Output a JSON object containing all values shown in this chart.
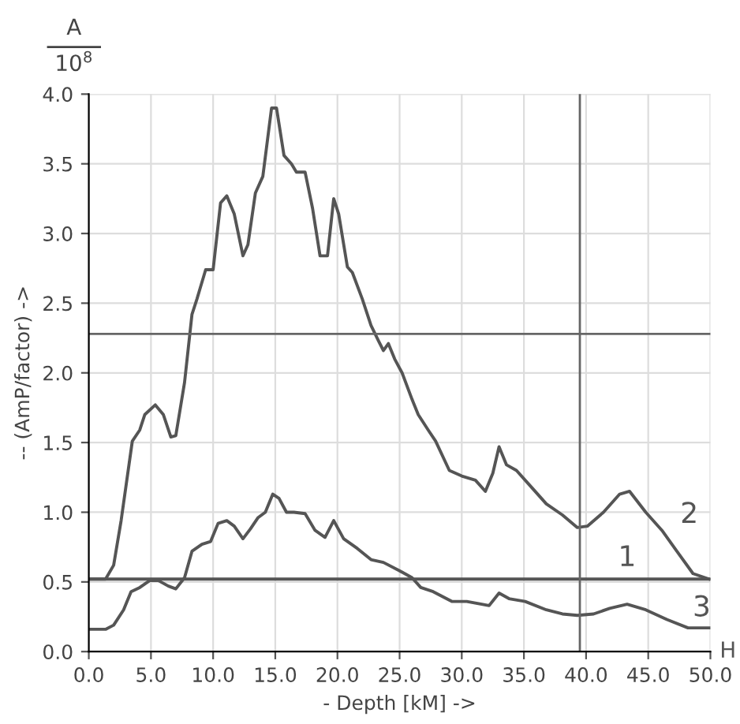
{
  "chart_data": {
    "type": "line",
    "xlabel": "- Depth [kM] ->",
    "ylabel": "-- (AmP/factor) ->",
    "xlim": [
      0,
      50
    ],
    "ylim": [
      0,
      4
    ],
    "xticks": [
      {
        "value": 0,
        "label": "0.0"
      },
      {
        "value": 5,
        "label": "5.0"
      },
      {
        "value": 10,
        "label": "10.0"
      },
      {
        "value": 15,
        "label": "15.0"
      },
      {
        "value": 20,
        "label": "20.0"
      },
      {
        "value": 25,
        "label": "25.0"
      },
      {
        "value": 30,
        "label": "30.0"
      },
      {
        "value": 35,
        "label": "35.0"
      },
      {
        "value": 40,
        "label": "40.0"
      },
      {
        "value": 45,
        "label": "45.0"
      },
      {
        "value": 50,
        "label": "50.0"
      }
    ],
    "yticks": [
      {
        "value": 0,
        "label": "0.0"
      },
      {
        "value": 0.5,
        "label": "0.5"
      },
      {
        "value": 1,
        "label": "1.0"
      },
      {
        "value": 1.5,
        "label": "1.5"
      },
      {
        "value": 2,
        "label": "2.0"
      },
      {
        "value": 2.5,
        "label": "2.5"
      },
      {
        "value": 3,
        "label": "3.0"
      },
      {
        "value": 3.5,
        "label": "3.5"
      },
      {
        "value": 4,
        "label": "4.0"
      }
    ],
    "grid": true,
    "line_style": "solid",
    "marker": "none",
    "series": [
      {
        "name": "1",
        "color": "#555555",
        "x": [
          0,
          50
        ],
        "values": [
          0.52,
          0.52
        ]
      },
      {
        "name": "2",
        "color": "#555555",
        "x": [
          0,
          1.35,
          2.0,
          2.6,
          3.5,
          4.1,
          4.5,
          5.35,
          6.0,
          6.6,
          7.0,
          7.7,
          8.3,
          8.7,
          9.4,
          10.0,
          10.6,
          11.1,
          11.7,
          12.4,
          12.8,
          13.4,
          14.0,
          14.7,
          15.1,
          15.7,
          16.3,
          16.7,
          17.4,
          18.0,
          18.6,
          19.2,
          19.7,
          20.1,
          20.8,
          21.2,
          22.0,
          22.7,
          23.3,
          23.7,
          24.1,
          24.6,
          25.2,
          26.0,
          26.5,
          27.3,
          27.9,
          29.0,
          30.0,
          31.1,
          31.9,
          32.5,
          33.0,
          33.6,
          34.4,
          35.5,
          36.8,
          38.1,
          39.3,
          40.1,
          41.4,
          42.7,
          43.5,
          44.8,
          46.1,
          47.3,
          48.6,
          49.9
        ],
        "values": [
          0.52,
          0.52,
          0.62,
          0.94,
          1.51,
          1.59,
          1.7,
          1.77,
          1.7,
          1.54,
          1.55,
          1.93,
          2.42,
          2.53,
          2.74,
          2.74,
          3.22,
          3.27,
          3.14,
          2.84,
          2.92,
          3.29,
          3.41,
          3.9,
          3.9,
          3.56,
          3.5,
          3.44,
          3.44,
          3.18,
          2.84,
          2.84,
          3.25,
          3.14,
          2.76,
          2.72,
          2.53,
          2.34,
          2.23,
          2.16,
          2.21,
          2.1,
          2.0,
          1.81,
          1.7,
          1.59,
          1.51,
          1.3,
          1.26,
          1.23,
          1.15,
          1.28,
          1.47,
          1.34,
          1.3,
          1.19,
          1.06,
          0.98,
          0.89,
          0.9,
          1.0,
          1.13,
          1.15,
          1.0,
          0.87,
          0.72,
          0.56,
          0.52
        ]
      },
      {
        "name": "3",
        "color": "#555555",
        "x": [
          0,
          1.35,
          2.0,
          2.8,
          3.4,
          4.1,
          4.9,
          5.6,
          6.4,
          7.0,
          7.7,
          8.3,
          9.1,
          9.8,
          10.4,
          11.1,
          11.7,
          12.4,
          13.0,
          13.6,
          14.2,
          14.8,
          15.3,
          15.9,
          16.5,
          17.4,
          18.2,
          19.0,
          19.7,
          20.5,
          21.6,
          22.7,
          23.7,
          25.0,
          26.0,
          26.7,
          27.7,
          29.2,
          30.4,
          32.2,
          33.0,
          33.8,
          35.1,
          36.8,
          38.1,
          39.3,
          40.6,
          41.9,
          43.3,
          44.8,
          46.5,
          48.2,
          49.9
        ],
        "values": [
          0.16,
          0.16,
          0.19,
          0.3,
          0.43,
          0.46,
          0.51,
          0.51,
          0.47,
          0.45,
          0.53,
          0.72,
          0.77,
          0.79,
          0.92,
          0.94,
          0.9,
          0.81,
          0.88,
          0.96,
          1.0,
          1.13,
          1.1,
          1.0,
          1.0,
          0.99,
          0.87,
          0.82,
          0.94,
          0.81,
          0.74,
          0.66,
          0.64,
          0.58,
          0.53,
          0.46,
          0.43,
          0.36,
          0.36,
          0.33,
          0.42,
          0.38,
          0.36,
          0.3,
          0.27,
          0.26,
          0.27,
          0.31,
          0.34,
          0.3,
          0.23,
          0.17,
          0.17
        ]
      }
    ],
    "ref_lines": [
      {
        "axis": "y",
        "value": 2.28,
        "color": "#666666"
      },
      {
        "axis": "x",
        "value": 39.5,
        "color": "#666666"
      }
    ],
    "annotations": [
      "H",
      "A",
      "10$^{8}$"
    ]
  }
}
